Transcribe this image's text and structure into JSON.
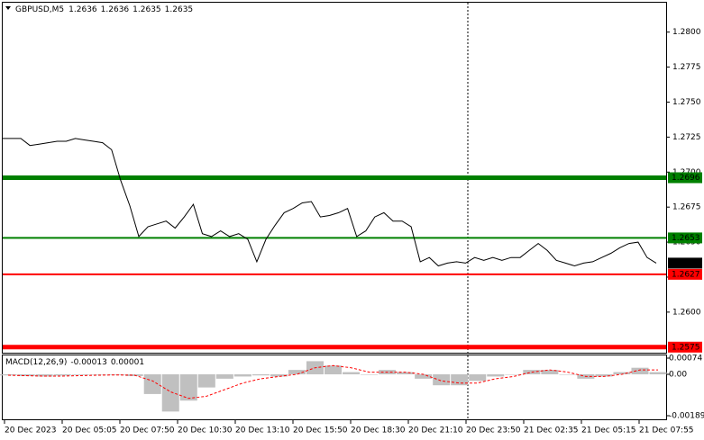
{
  "chart_data": [
    {
      "type": "line",
      "symbol": "GBPUSD,M5",
      "ohlc": [
        1.2636,
        1.2636,
        1.2635,
        1.2635
      ],
      "series": [
        {
          "color": "#000000",
          "values": [
            1.2724,
            1.2724,
            1.2724,
            1.2719,
            1.272,
            1.2721,
            1.2722,
            1.2722,
            1.2724,
            1.2723,
            1.2722,
            1.2721,
            1.2716,
            1.2694,
            1.2676,
            1.2654,
            1.2661,
            1.2663,
            1.2665,
            1.266,
            1.2668,
            1.2677,
            1.2656,
            1.2654,
            1.2658,
            1.2654,
            1.2656,
            1.2652,
            1.2636,
            1.2652,
            1.2662,
            1.2671,
            1.2674,
            1.2678,
            1.2679,
            1.2668,
            1.2669,
            1.2671,
            1.2674,
            1.2654,
            1.2658,
            1.2668,
            1.2671,
            1.2665,
            1.2665,
            1.2661,
            1.2636,
            1.2639,
            1.2633,
            1.2635,
            1.2636,
            1.2635,
            1.2639,
            1.2637,
            1.2639,
            1.2637,
            1.2639,
            1.2639,
            1.2644,
            1.2649,
            1.2644,
            1.2637,
            1.2635,
            1.2633,
            1.2635,
            1.2636,
            1.2639,
            1.2642,
            1.2646,
            1.2649,
            1.265,
            1.2639,
            1.2635
          ]
        }
      ],
      "levels": [
        {
          "value": 1.2696,
          "color": "#008000",
          "width": 5
        },
        {
          "value": 1.2653,
          "color": "#008000",
          "width": 2
        },
        {
          "value": 1.2627,
          "color": "#ff0000",
          "width": 2
        },
        {
          "value": 1.2575,
          "color": "#ff0000",
          "width": 5
        }
      ],
      "current": {
        "value": 1.2635,
        "color": "#000000"
      },
      "ylim": [
        1.2571,
        1.2821
      ],
      "yticks": [
        {
          "value": 1.28,
          "label": "1.2800"
        },
        1.2775,
        {
          "value": 1.275,
          "label": "1.2750"
        },
        1.2725,
        {
          "value": 1.27,
          "label": "1.2700"
        },
        1.2675,
        {
          "value": 1.265,
          "label": "1.2650"
        },
        1.2625,
        {
          "value": 1.26,
          "label": "1.2600"
        }
      ],
      "xticks": [
        "20 Dec 2023",
        "20 Dec 05:05",
        "20 Dec 07:50",
        "20 Dec 10:30",
        "20 Dec 13:10",
        "20 Dec 15:50",
        "20 Dec 18:30",
        "20 Dec 21:10",
        "20 Dec 23:50",
        "21 Dec 02:35",
        "21 Dec 05:15",
        "21 Dec 07:55"
      ]
    },
    {
      "type": "macd",
      "title": "MACD(12,26,9)",
      "readout": [
        "-0.00013",
        "0.00001"
      ],
      "series": [
        {
          "color": "#c0c0c0",
          "values": [
            -5e-05,
            -8e-05,
            -0.0001,
            -6e-05,
            -3e-05,
            -2e-05,
            -3e-05,
            -8e-05,
            -0.0009,
            -0.0017,
            -0.0012,
            -0.0006,
            -0.0002,
            -0.0001,
            -5e-05,
            -0.0001,
            0.0002,
            0.0006,
            0.0004,
            0.0001,
            0,
            0.0002,
            0.0001,
            -0.0002,
            -0.0005,
            -0.0005,
            -0.0003,
            -0.0001,
            0,
            0.0002,
            0.0002,
            0,
            -0.0002,
            -0.0001,
            0.0001,
            0.0003,
            0.0001
          ]
        },
        {
          "color": "#ff0000",
          "values": [
            -4e-05,
            -6e-05,
            -8e-05,
            -8e-05,
            -6e-05,
            -4e-05,
            -3e-05,
            -4e-05,
            -0.0003,
            -0.0008,
            -0.0011,
            -0.001,
            -0.0007,
            -0.0004,
            -0.0002,
            -0.0001,
            0,
            0.0003,
            0.0004,
            0.0003,
            0.0001,
            0.0001,
            0.0001,
            0,
            -0.0003,
            -0.0004,
            -0.0004,
            -0.0002,
            -0.0001,
            0.0001,
            0.0002,
            0.0001,
            -0.0001,
            -0.0001,
            0,
            0.0002,
            0.0002
          ]
        }
      ],
      "ylim": [
        -0.00189,
        0.00074
      ],
      "yticks": [
        0.00074,
        {
          "value": 0,
          "label": "0.00"
        },
        -0.00189
      ]
    }
  ]
}
